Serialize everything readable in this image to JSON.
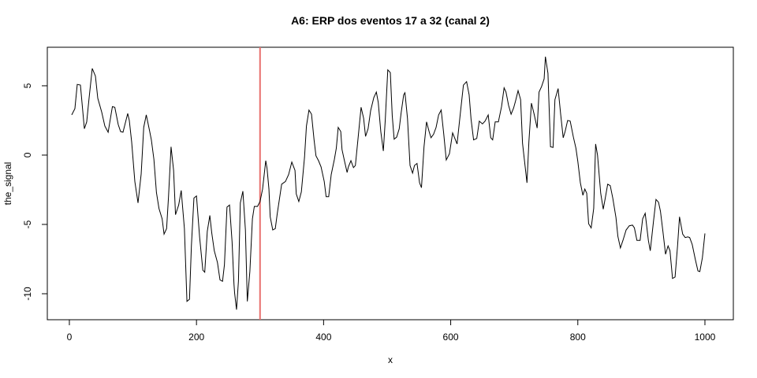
{
  "chart_data": {
    "type": "line",
    "title": "A6: ERP dos eventos 17 a 32 (canal 2)",
    "x_label": "x",
    "y_label": "the_signal",
    "xlim": [
      -34.7,
      1044.7
    ],
    "ylim": [
      -11.875,
      7.78
    ],
    "xticks": [
      0,
      200,
      400,
      600,
      800,
      1000
    ],
    "yticks": [
      -10,
      -5,
      0,
      5
    ],
    "vline": {
      "x": 300,
      "color": "#e8706e"
    },
    "series": [
      {
        "color": "#000000",
        "x": [
          3.7,
          8.7,
          12.4,
          17.4,
          23.6,
          27.3,
          31,
          36,
          41,
          44.7,
          50.9,
          55.8,
          61,
          67.7,
          71.5,
          76.9,
          80.6,
          84.4,
          91.8,
          94.3,
          98,
          103,
          108,
          113,
          117,
          121,
          126,
          129,
          133,
          137,
          141,
          146,
          149,
          153,
          156,
          160,
          164,
          167,
          172,
          176,
          181,
          185,
          189,
          192,
          196,
          200,
          205,
          210,
          213,
          217,
          221,
          224,
          228,
          233,
          237,
          241,
          244,
          248,
          252,
          256,
          259,
          260,
          263,
          266,
          269,
          273,
          277,
          280,
          284,
          288,
          291,
          296,
          300,
          304,
          309,
          311,
          314,
          316,
          320,
          324,
          327,
          334,
          340,
          345,
          350,
          355,
          357,
          361,
          365,
          370,
          373,
          377,
          381,
          385,
          388,
          392,
          396,
          401,
          404,
          408,
          412,
          417,
          420,
          423,
          427,
          429,
          433,
          437,
          439,
          443,
          447,
          450,
          454,
          459,
          463,
          466,
          470,
          474,
          479,
          483,
          486,
          490,
          494,
          497,
          501,
          505,
          508,
          511,
          515,
          519,
          522,
          526,
          528,
          532,
          536,
          540,
          543,
          547,
          551,
          554,
          558,
          562,
          566,
          569,
          573,
          577,
          581,
          585,
          589,
          593,
          598,
          603,
          607,
          610,
          615,
          620,
          625,
          629,
          632,
          636,
          641,
          645,
          650,
          654,
          659,
          663,
          666,
          670,
          675,
          680,
          684,
          687,
          691,
          695,
          699,
          702,
          706,
          710,
          713,
          720,
          723,
          727,
          731,
          736,
          739,
          743,
          747,
          749,
          753,
          757,
          761,
          764,
          769,
          773,
          777,
          780,
          784,
          788,
          793,
          797,
          800,
          804,
          808,
          811,
          814,
          817,
          821,
          825,
          828,
          831,
          836,
          840,
          843,
          847,
          851,
          855,
          860,
          863,
          867,
          871,
          876,
          881,
          886,
          889,
          893,
          898,
          902,
          906,
          911,
          914,
          919,
          923,
          927,
          930,
          934,
          938,
          942,
          945,
          949,
          953,
          957,
          960,
          965,
          969,
          973,
          976,
          980,
          985,
          989,
          992,
          996,
          1000
        ],
        "values": [
          2.9,
          3.35,
          5.1,
          5.05,
          1.9,
          2.4,
          4.1,
          6.25,
          5.7,
          4.1,
          3.1,
          2.1,
          1.65,
          3.5,
          3.45,
          2.2,
          1.7,
          1.65,
          3,
          2.5,
          0.95,
          -1.9,
          -3.45,
          -1.35,
          2,
          2.9,
          1.8,
          1.1,
          -0.3,
          -2.7,
          -3.85,
          -4.6,
          -5.7,
          -5.3,
          -3,
          0.6,
          -1.1,
          -4.3,
          -3.6,
          -2.55,
          -5.3,
          -10.55,
          -10.4,
          -6.55,
          -3.1,
          -2.95,
          -5.95,
          -8.3,
          -8.45,
          -5.5,
          -4.35,
          -5.6,
          -6.9,
          -7.75,
          -9,
          -9.1,
          -7.9,
          -3.75,
          -3.6,
          -6.25,
          -9.3,
          -9.95,
          -11.15,
          -9.1,
          -3.45,
          -2.6,
          -5.4,
          -10.55,
          -8.4,
          -4.6,
          -3.7,
          -3.7,
          -3.35,
          -2.45,
          -0.4,
          -0.95,
          -2.45,
          -4.45,
          -5.4,
          -5.3,
          -4.25,
          -2.1,
          -1.9,
          -1.4,
          -0.5,
          -1.1,
          -2.8,
          -3.35,
          -2.65,
          -0.15,
          2.1,
          3.25,
          2.95,
          1.1,
          -0.05,
          -0.4,
          -0.85,
          -1.9,
          -3,
          -3,
          -1.4,
          -0.3,
          0.5,
          2,
          1.7,
          0.4,
          -0.45,
          -1.25,
          -0.85,
          -0.4,
          -0.9,
          -0.75,
          1.1,
          3.45,
          2.65,
          1.35,
          1.9,
          3.2,
          4.15,
          4.55,
          3.8,
          1.7,
          0.3,
          2.5,
          6.15,
          5.95,
          2.85,
          1.15,
          1.3,
          1.9,
          3.05,
          4.35,
          4.5,
          2.65,
          -0.75,
          -1.3,
          -0.75,
          -0.6,
          -2,
          -2.35,
          0.6,
          2.4,
          1.7,
          1.25,
          1.5,
          2,
          2.9,
          3.25,
          1.55,
          -0.35,
          0.1,
          1.6,
          1.15,
          0.8,
          2.95,
          5.05,
          5.3,
          4.35,
          2.6,
          1.1,
          1.2,
          2.45,
          2.25,
          2.45,
          2.9,
          1.25,
          1.1,
          2.4,
          2.4,
          3.5,
          4.85,
          4.55,
          3.6,
          2.95,
          3.4,
          3.9,
          4.65,
          4,
          0.85,
          -2,
          0.95,
          3.75,
          3,
          1.95,
          4.55,
          4.95,
          5.5,
          7.1,
          5.9,
          0.6,
          0.55,
          4,
          4.8,
          2.95,
          1.25,
          1.7,
          2.5,
          2.45,
          1.3,
          0.5,
          -0.45,
          -2,
          -2.9,
          -2.45,
          -2.75,
          -4.95,
          -5.25,
          -3.85,
          0.8,
          0,
          -2.75,
          -3.9,
          -3.15,
          -2.1,
          -2.2,
          -3.1,
          -4.5,
          -5.85,
          -6.7,
          -6.15,
          -5.4,
          -5.1,
          -5.05,
          -5.25,
          -6.15,
          -6.15,
          -4.6,
          -4.2,
          -6.15,
          -6.9,
          -4.8,
          -3.2,
          -3.4,
          -4.05,
          -5.55,
          -7.15,
          -6.55,
          -6.9,
          -8.9,
          -8.8,
          -6.5,
          -4.45,
          -5.7,
          -5.95,
          -5.9,
          -5.95,
          -6.45,
          -7.55,
          -8.35,
          -8.4,
          -7.4,
          -5.65
        ]
      }
    ]
  }
}
